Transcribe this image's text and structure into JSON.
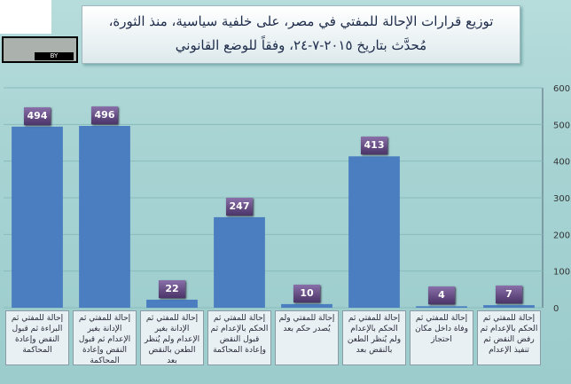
{
  "chart_data": {
    "type": "bar",
    "title": "توزيع قرارات الإحالة للمفتي في مصر، على خلفية سياسية، منذ الثورة، مُحدَّث بتاريخ ٢٠١٥-٧-٢٤، وفقاً للوضع القانوني",
    "badge": "BY",
    "categories": [
      "إحالة للمفتي ثم البراءة ثم قبول النقض وإعادة المحاكمة",
      "إحالة للمفتي ثم الإدانة بغير الإعدام ثم قبول النقض وإعادة المحاكمة",
      "إحالة للمفتي ثم الإدانة بغير الإعدام ولم يُنظر الطعن بالنقض بعد",
      "إحالة للمفتي ثم الحكم بالإعدام ثم قبول النقض وإعادة المحاكمة",
      "إحالة للمفتي ولم يُصدر حكم بعد",
      "إحالة للمفتي ثم الحكم بالإعدام ولم يُنظر الطعن بالنقض بعد",
      "إحالة للمفتي ثم وفاة داخل مكان احتجاز",
      "إحالة للمفتي ثم الحكم بالإعدام ثم رفض النقض ثم تنفيذ الإعدام"
    ],
    "values": [
      494,
      496,
      22,
      247,
      10,
      413,
      4,
      7
    ],
    "color": "#4a7ec0",
    "ylim": [
      0,
      600
    ],
    "yticks": [
      0,
      100,
      200,
      300,
      400,
      500,
      600
    ],
    "grid": true
  }
}
